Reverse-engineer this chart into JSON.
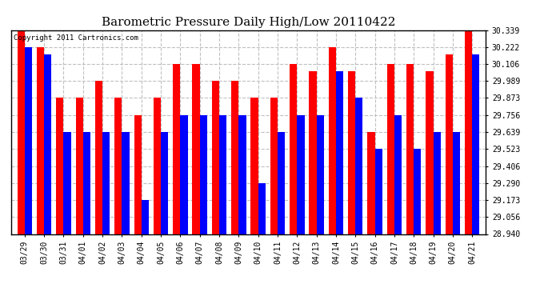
{
  "title": "Barometric Pressure Daily High/Low 20110422",
  "copyright": "Copyright 2011 Cartronics.com",
  "dates": [
    "03/29",
    "03/30",
    "03/31",
    "04/01",
    "04/02",
    "04/03",
    "04/04",
    "04/05",
    "04/06",
    "04/07",
    "04/08",
    "04/09",
    "04/10",
    "04/11",
    "04/12",
    "04/13",
    "04/14",
    "04/15",
    "04/16",
    "04/17",
    "04/18",
    "04/19",
    "04/20",
    "04/21"
  ],
  "highs": [
    30.339,
    30.222,
    29.873,
    29.873,
    29.989,
    29.873,
    29.756,
    29.873,
    30.106,
    30.106,
    29.989,
    29.989,
    29.873,
    29.873,
    30.106,
    30.056,
    30.222,
    30.056,
    29.639,
    30.106,
    30.106,
    30.056,
    30.173,
    30.339
  ],
  "lows": [
    30.222,
    30.173,
    29.639,
    29.639,
    29.639,
    29.639,
    29.173,
    29.639,
    29.756,
    29.756,
    29.756,
    29.756,
    29.29,
    29.639,
    29.756,
    29.756,
    30.056,
    29.873,
    29.523,
    29.756,
    29.523,
    29.639,
    29.639,
    30.173
  ],
  "ylim_min": 28.94,
  "ylim_max": 30.339,
  "yticks": [
    28.94,
    29.056,
    29.173,
    29.29,
    29.406,
    29.523,
    29.639,
    29.756,
    29.873,
    29.989,
    30.106,
    30.222,
    30.339
  ],
  "bar_color_high": "#ff0000",
  "bar_color_low": "#0000ff",
  "bg_color": "#ffffff",
  "grid_color": "#c0c0c0",
  "title_fontsize": 11,
  "tick_fontsize": 7,
  "copyright_fontsize": 6.5
}
